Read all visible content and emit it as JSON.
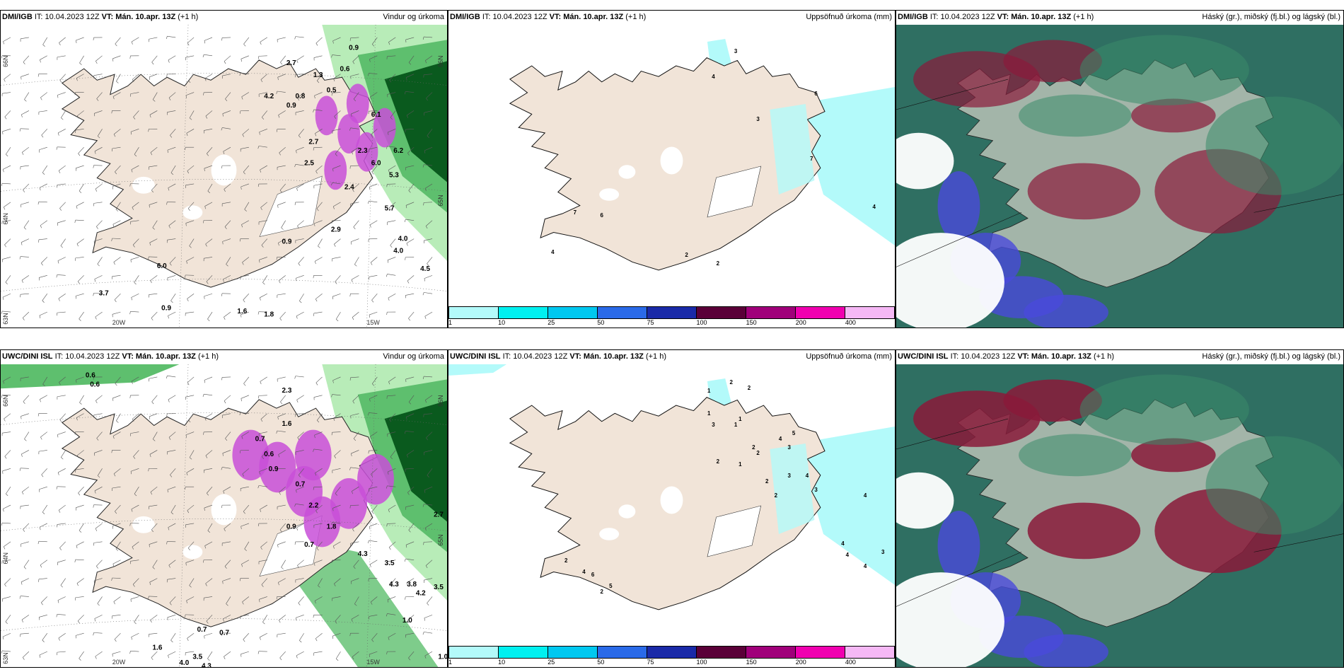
{
  "panels": [
    {
      "model": "DMI/IGB",
      "it": "IT: 10.04.2023 12Z",
      "vt_label": "VT:",
      "vt": "Mán. 10.apr. 13Z",
      "lead": "(+1 h)",
      "title": "Vindur og úrkoma",
      "type": "wind"
    },
    {
      "model": "DMI/IGB",
      "it": "IT: 10.04.2023 12Z",
      "vt_label": "VT:",
      "vt": "Mán. 10.apr. 13Z",
      "lead": "(+1 h)",
      "title": "Uppsöfnuð úrkoma (mm)",
      "type": "accum"
    },
    {
      "model": "DMI/IGB",
      "it": "IT: 10.04.2023 12Z",
      "vt_label": "VT:",
      "vt": "Mán. 10.apr. 13Z",
      "lead": "(+1 h)",
      "title": "Háský (gr.), miðský (fj.bl.) og lágský (bl.)",
      "type": "cloud"
    },
    {
      "model": "UWC/DINI ISL",
      "it": "IT: 10.04.2023 12Z",
      "vt_label": "VT:",
      "vt": "Mán. 10.apr. 13Z",
      "lead": "(+1 h)",
      "title": "Vindur og úrkoma",
      "type": "wind"
    },
    {
      "model": "UWC/DINI ISL",
      "it": "IT: 10.04.2023 12Z",
      "vt_label": "VT:",
      "vt": "Mán. 10.apr. 13Z",
      "lead": "(+1 h)",
      "title": "Uppsöfnuð úrkoma (mm)",
      "type": "accum"
    },
    {
      "model": "UWC/DINI ISL",
      "it": "IT: 10.04.2023 12Z",
      "vt_label": "VT:",
      "vt": "Mán. 10.apr. 13Z",
      "lead": "(+1 h)",
      "title": "Háský (gr.), miðský (fj.bl.) og lágský (bl.)",
      "type": "cloud"
    }
  ],
  "axis_labels": {
    "lon_20w": "20W",
    "lon_15w": "15W",
    "lat_66n": "66N",
    "lat_64n": "64N",
    "lat_65n": "65N",
    "lat_63n": "63N"
  },
  "colorbar": {
    "ticks": [
      "1",
      "10",
      "25",
      "50",
      "75",
      "100",
      "150",
      "200",
      "400"
    ],
    "colors": [
      "#b3fafa",
      "#00f0f0",
      "#00c8f0",
      "#2a6ae8",
      "#1a2aa8",
      "#5a0038",
      "#a0007a",
      "#f000b0",
      "#f5b8f5"
    ]
  },
  "wind_values_top": [
    "0.9",
    "2.7",
    "1.3",
    "0.6",
    "0.8",
    "4.2",
    "0.9",
    "0.5",
    "6.1",
    "2.7",
    "2.5",
    "2.3",
    "6.0",
    "6.2",
    "2.4",
    "5.3",
    "4.0",
    "5.7",
    "2.9",
    "0.9",
    "4.0",
    "4.5",
    "6.0",
    "3.7",
    "0.9",
    "1.6",
    "1.8"
  ],
  "wind_values_bottom": [
    "0.6",
    "0.6",
    "2.3",
    "1.6",
    "0.6",
    "0.7",
    "0.9",
    "0.7",
    "2.2",
    "1.8",
    "0.9",
    "0.7",
    "4.3",
    "3.5",
    "4.3",
    "3.8",
    "4.2",
    "3.5",
    "2.7",
    "1.0",
    "1.0",
    "0.7",
    "0.7",
    "1.6",
    "4.0",
    "3.5",
    "4.3"
  ],
  "accum_values_top": [
    "3",
    "4",
    "3",
    "6",
    "7",
    "7",
    "4",
    "6",
    "4",
    "2",
    "2"
  ],
  "accum_values_bottom": [
    "2",
    "1",
    "2",
    "1",
    "3",
    "1",
    "1",
    "2",
    "2",
    "1",
    "2",
    "5",
    "4",
    "3",
    "3",
    "4",
    "2",
    "2",
    "3",
    "4",
    "4",
    "3",
    "4",
    "4",
    "2",
    "6",
    "5",
    "4",
    "2"
  ],
  "colors": {
    "land": "#f1e4d8",
    "sea": "#ffffff",
    "green_light": "#b8ecb8",
    "green_mid": "#5ebf6e",
    "green_dark": "#0a5a1e",
    "magenta": "#c84fd8",
    "cloud_high": "#8a1a3a",
    "cloud_mid": "#3a8a6a",
    "cloud_low": "#4a4adb"
  }
}
